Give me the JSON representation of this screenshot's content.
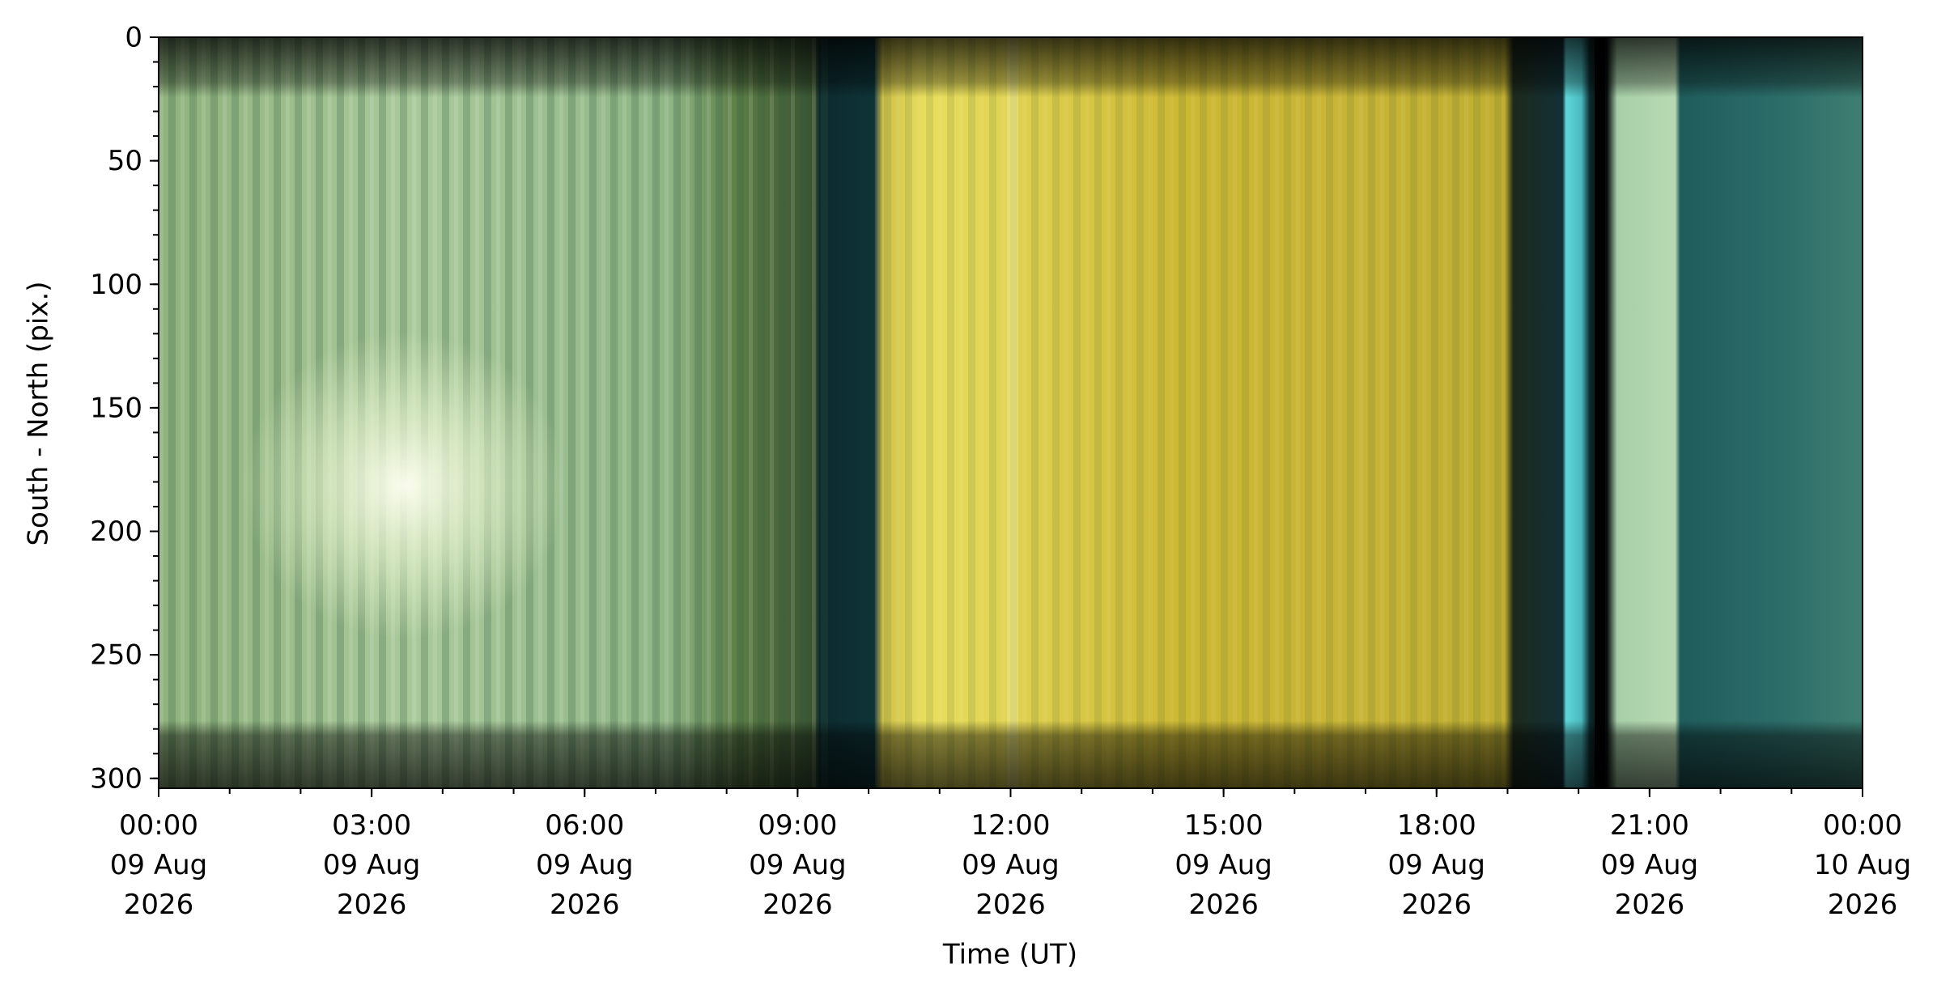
{
  "chart_data": {
    "type": "image",
    "x_label": "Time (UT)",
    "y_label": "South - North (pix.)",
    "xlim": [
      0,
      24
    ],
    "xticks": [
      {
        "value": 0,
        "label": "00:00\n09 Aug\n2026"
      },
      {
        "value": 3,
        "label": "03:00\n09 Aug\n2026"
      },
      {
        "value": 6,
        "label": "06:00\n09 Aug\n2026"
      },
      {
        "value": 9,
        "label": "09:00\n09 Aug\n2026"
      },
      {
        "value": 12,
        "label": "12:00\n09 Aug\n2026"
      },
      {
        "value": 15,
        "label": "15:00\n09 Aug\n2026"
      },
      {
        "value": 18,
        "label": "18:00\n09 Aug\n2026"
      },
      {
        "value": 21,
        "label": "21:00\n09 Aug\n2026"
      },
      {
        "value": 24,
        "label": "00:00\n10 Aug\n2026"
      }
    ],
    "xminor": 1,
    "ylim": [
      0,
      304
    ],
    "yticks": [
      0,
      50,
      100,
      150,
      200,
      250,
      300
    ],
    "yminor": 10,
    "y_inverted": true
  }
}
